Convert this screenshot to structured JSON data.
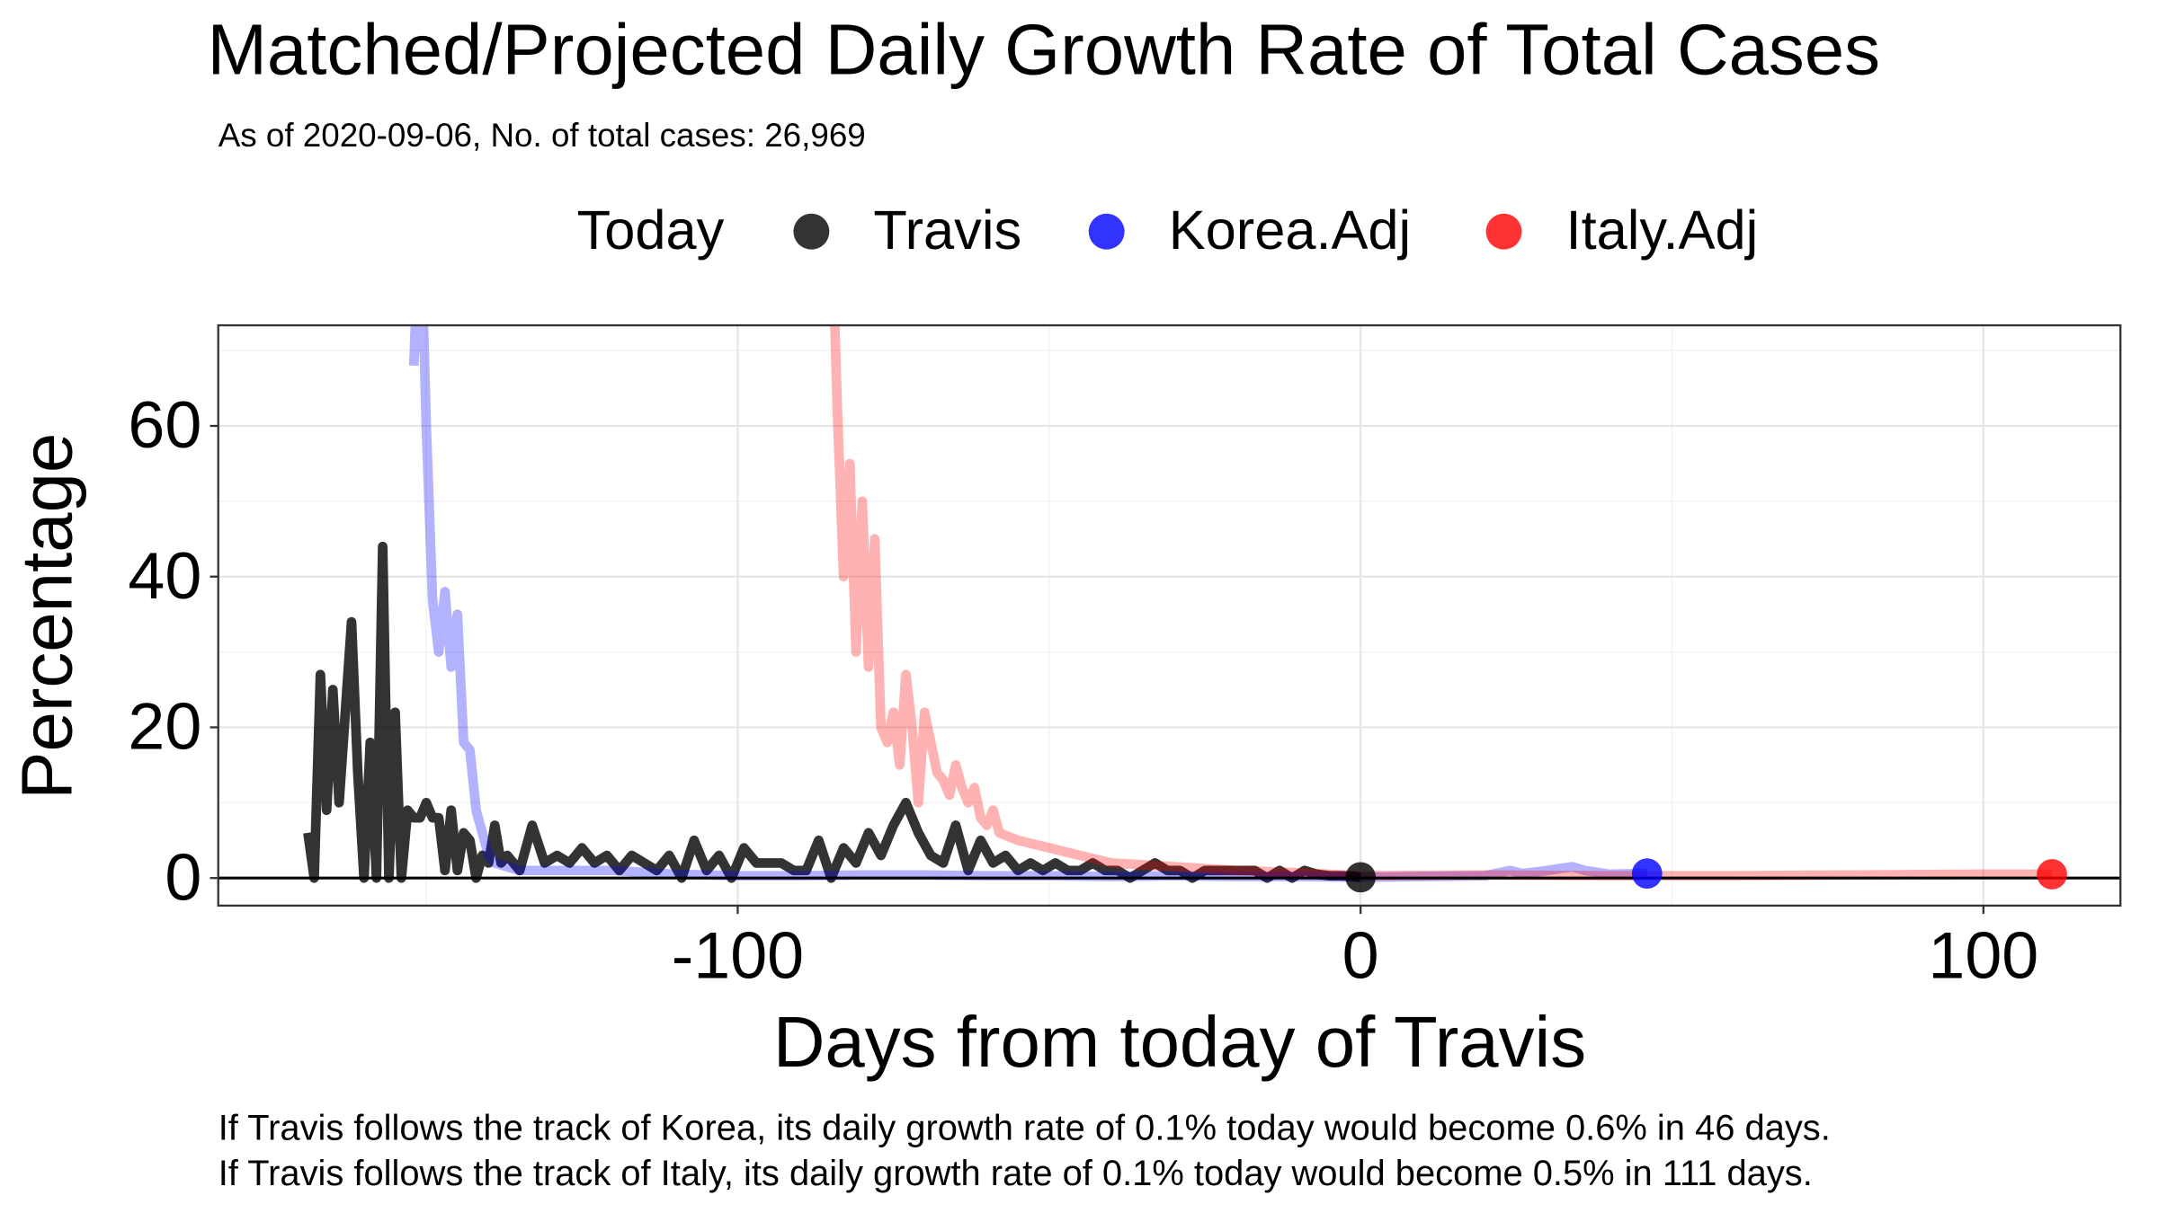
{
  "chart_data": {
    "type": "line",
    "title": "Matched/Projected Daily Growth Rate of Total Cases",
    "subtitle": "As of 2020-09-06, No. of total cases: 26,969",
    "legend_title": "Today",
    "x_label": "Days from today of Travis",
    "y_label": "Percentage",
    "notes": [
      "If Travis follows the track of Korea, its daily growth rate of 0.1% today would become 0.6% in 46 days.",
      "If Travis follows the track of Italy, its daily growth rate of 0.1% today would become 0.5% in 111 days."
    ],
    "xlim": [
      -183.4,
      122.0
    ],
    "ylim": [
      -3.66,
      73.35
    ],
    "xticks": [
      -100,
      0,
      100
    ],
    "yticks": [
      0,
      20,
      40,
      60
    ],
    "grid": true,
    "reference_line": 0,
    "series": [
      {
        "name": "Travis",
        "color": "#000000",
        "line_opacity": 0.8,
        "x": [
          -169,
          -168,
          -167,
          -166,
          -165,
          -164,
          -163,
          -162,
          -161,
          -160,
          -159,
          -158,
          -157,
          -156,
          -155,
          -154,
          -153,
          -152,
          -151,
          -150,
          -149,
          -148,
          -147,
          -146,
          -145,
          -144,
          -143,
          -142,
          -141,
          -140,
          -139,
          -138,
          -137,
          -135,
          -133,
          -131,
          -129,
          -127,
          -125,
          -123,
          -121,
          -119,
          -117,
          -115,
          -113,
          -111,
          -109,
          -107,
          -105,
          -103,
          -101,
          -99,
          -97,
          -95,
          -93,
          -91,
          -89,
          -87,
          -85,
          -83,
          -81,
          -79,
          -77,
          -75,
          -73,
          -71,
          -69,
          -67,
          -65,
          -63,
          -61,
          -59,
          -57,
          -55,
          -53,
          -51,
          -49,
          -47,
          -45,
          -43,
          -41,
          -39,
          -37,
          -35,
          -33,
          -31,
          -29,
          -27,
          -25,
          -23,
          -21,
          -19,
          -17,
          -15,
          -13,
          -11,
          -9,
          -7,
          -5,
          -3,
          -1,
          0
        ],
        "values": [
          6,
          0,
          27,
          9,
          25,
          10,
          22,
          34,
          14,
          0,
          18,
          0,
          44,
          0,
          22,
          0,
          9,
          8,
          8,
          10,
          8,
          8,
          1,
          9,
          1,
          6,
          5,
          0,
          3,
          2,
          7,
          2,
          3,
          1,
          7,
          2,
          3,
          2,
          4,
          2,
          3,
          1,
          3,
          2,
          1,
          3,
          0,
          5,
          1,
          3,
          0,
          4,
          2,
          2,
          2,
          1,
          1,
          5,
          0,
          4,
          2,
          6,
          3,
          7,
          10,
          6,
          3,
          2,
          7,
          1,
          5,
          2,
          3,
          1,
          2,
          1,
          2,
          1,
          1,
          2,
          1,
          1,
          0,
          1,
          2,
          1,
          1,
          0,
          1,
          1,
          1,
          1,
          1,
          0,
          1,
          0,
          1,
          0.5,
          0.3,
          0.3,
          0.2,
          0.1
        ],
        "today": {
          "x": 0,
          "y": 0.1
        }
      },
      {
        "name": "Korea.Adj",
        "color": "#0000ff",
        "line_opacity": 0.3,
        "x": [
          -152,
          -151,
          -150,
          -149,
          -148,
          -147,
          -146,
          -145,
          -144,
          -143,
          -142,
          -141,
          -140,
          -139,
          -135,
          -130,
          -120,
          -110,
          -100,
          -90,
          -80,
          -70,
          -60,
          -50,
          -40,
          -30,
          -20,
          -10,
          0,
          10,
          20,
          24,
          26,
          30,
          34,
          36,
          40,
          46
        ],
        "values": [
          68,
          90,
          60,
          37,
          30,
          38,
          28,
          35,
          18,
          17,
          9,
          6,
          3,
          2,
          1,
          1,
          1,
          0.5,
          0.3,
          0.3,
          0.4,
          0.4,
          0.3,
          0.3,
          0.2,
          0.3,
          0.2,
          0.2,
          0.1,
          0.2,
          0.3,
          1,
          0.6,
          1,
          1.5,
          1,
          0.5,
          0.6
        ],
        "today": {
          "x": 46,
          "y": 0.6
        }
      },
      {
        "name": "Italy.Adj",
        "color": "#ff0000",
        "line_opacity": 0.3,
        "x": [
          -85,
          -84,
          -83,
          -82,
          -81,
          -80,
          -79,
          -78,
          -77,
          -76,
          -75,
          -74,
          -73,
          -72,
          -71,
          -70,
          -69,
          -68,
          -67,
          -66,
          -65,
          -64,
          -63,
          -62,
          -61,
          -60,
          -59,
          -58,
          -55,
          -50,
          -45,
          -40,
          -30,
          -20,
          -10,
          0,
          20,
          40,
          60,
          80,
          100,
          111
        ],
        "values": [
          90,
          62,
          40,
          55,
          30,
          50,
          28,
          45,
          20,
          18,
          22,
          15,
          27,
          20,
          10,
          22,
          18,
          14,
          13,
          11,
          15,
          12,
          10,
          12,
          8,
          7,
          9,
          6,
          5,
          4,
          3,
          2,
          1.5,
          1,
          0.7,
          0.3,
          0.4,
          0.3,
          0.3,
          0.4,
          0.5,
          0.5
        ],
        "today": {
          "x": 111,
          "y": 0.5
        }
      }
    ]
  }
}
